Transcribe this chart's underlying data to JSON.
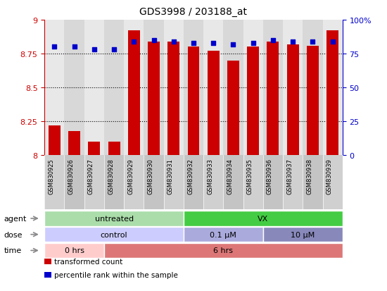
{
  "title": "GDS3998 / 203188_at",
  "samples": [
    "GSM830925",
    "GSM830926",
    "GSM830927",
    "GSM830928",
    "GSM830929",
    "GSM830930",
    "GSM830931",
    "GSM830932",
    "GSM830933",
    "GSM830934",
    "GSM830935",
    "GSM830936",
    "GSM830937",
    "GSM830938",
    "GSM830939"
  ],
  "bar_values": [
    8.22,
    8.18,
    8.1,
    8.1,
    8.92,
    8.84,
    8.84,
    8.8,
    8.77,
    8.7,
    8.8,
    8.84,
    8.82,
    8.81,
    8.92
  ],
  "dot_values": [
    80,
    80,
    78,
    78,
    84,
    85,
    84,
    83,
    83,
    82,
    83,
    85,
    84,
    84,
    84
  ],
  "ylim_left": [
    8.0,
    9.0
  ],
  "ylim_right": [
    0,
    100
  ],
  "yticks_left": [
    8.0,
    8.25,
    8.5,
    8.75,
    9.0
  ],
  "yticks_right": [
    0,
    25,
    50,
    75,
    100
  ],
  "ytick_labels_left": [
    "8",
    "8.25",
    "8.5",
    "8.75",
    "9"
  ],
  "ytick_labels_right": [
    "0",
    "25",
    "50",
    "75",
    "100%"
  ],
  "gridlines": [
    8.25,
    8.5,
    8.75
  ],
  "bar_color": "#cc0000",
  "dot_color": "#0000cc",
  "bg_color": "#ffffff",
  "xtick_bg": "#d4d4d4",
  "agent_labels": [
    {
      "text": "untreated",
      "start": 0,
      "end": 7,
      "color": "#aaddaa"
    },
    {
      "text": "VX",
      "start": 7,
      "end": 15,
      "color": "#44cc44"
    }
  ],
  "dose_labels": [
    {
      "text": "control",
      "start": 0,
      "end": 7,
      "color": "#ccccff"
    },
    {
      "text": "0.1 μM",
      "start": 7,
      "end": 11,
      "color": "#aaaadd"
    },
    {
      "text": "10 μM",
      "start": 11,
      "end": 15,
      "color": "#8888bb"
    }
  ],
  "time_labels": [
    {
      "text": "0 hrs",
      "start": 0,
      "end": 3,
      "color": "#ffcccc"
    },
    {
      "text": "6 hrs",
      "start": 3,
      "end": 15,
      "color": "#dd7777"
    }
  ],
  "row_labels": [
    "agent",
    "dose",
    "time"
  ],
  "legend_items": [
    {
      "label": "transformed count",
      "color": "#cc0000"
    },
    {
      "label": "percentile rank within the sample",
      "color": "#0000cc"
    }
  ]
}
